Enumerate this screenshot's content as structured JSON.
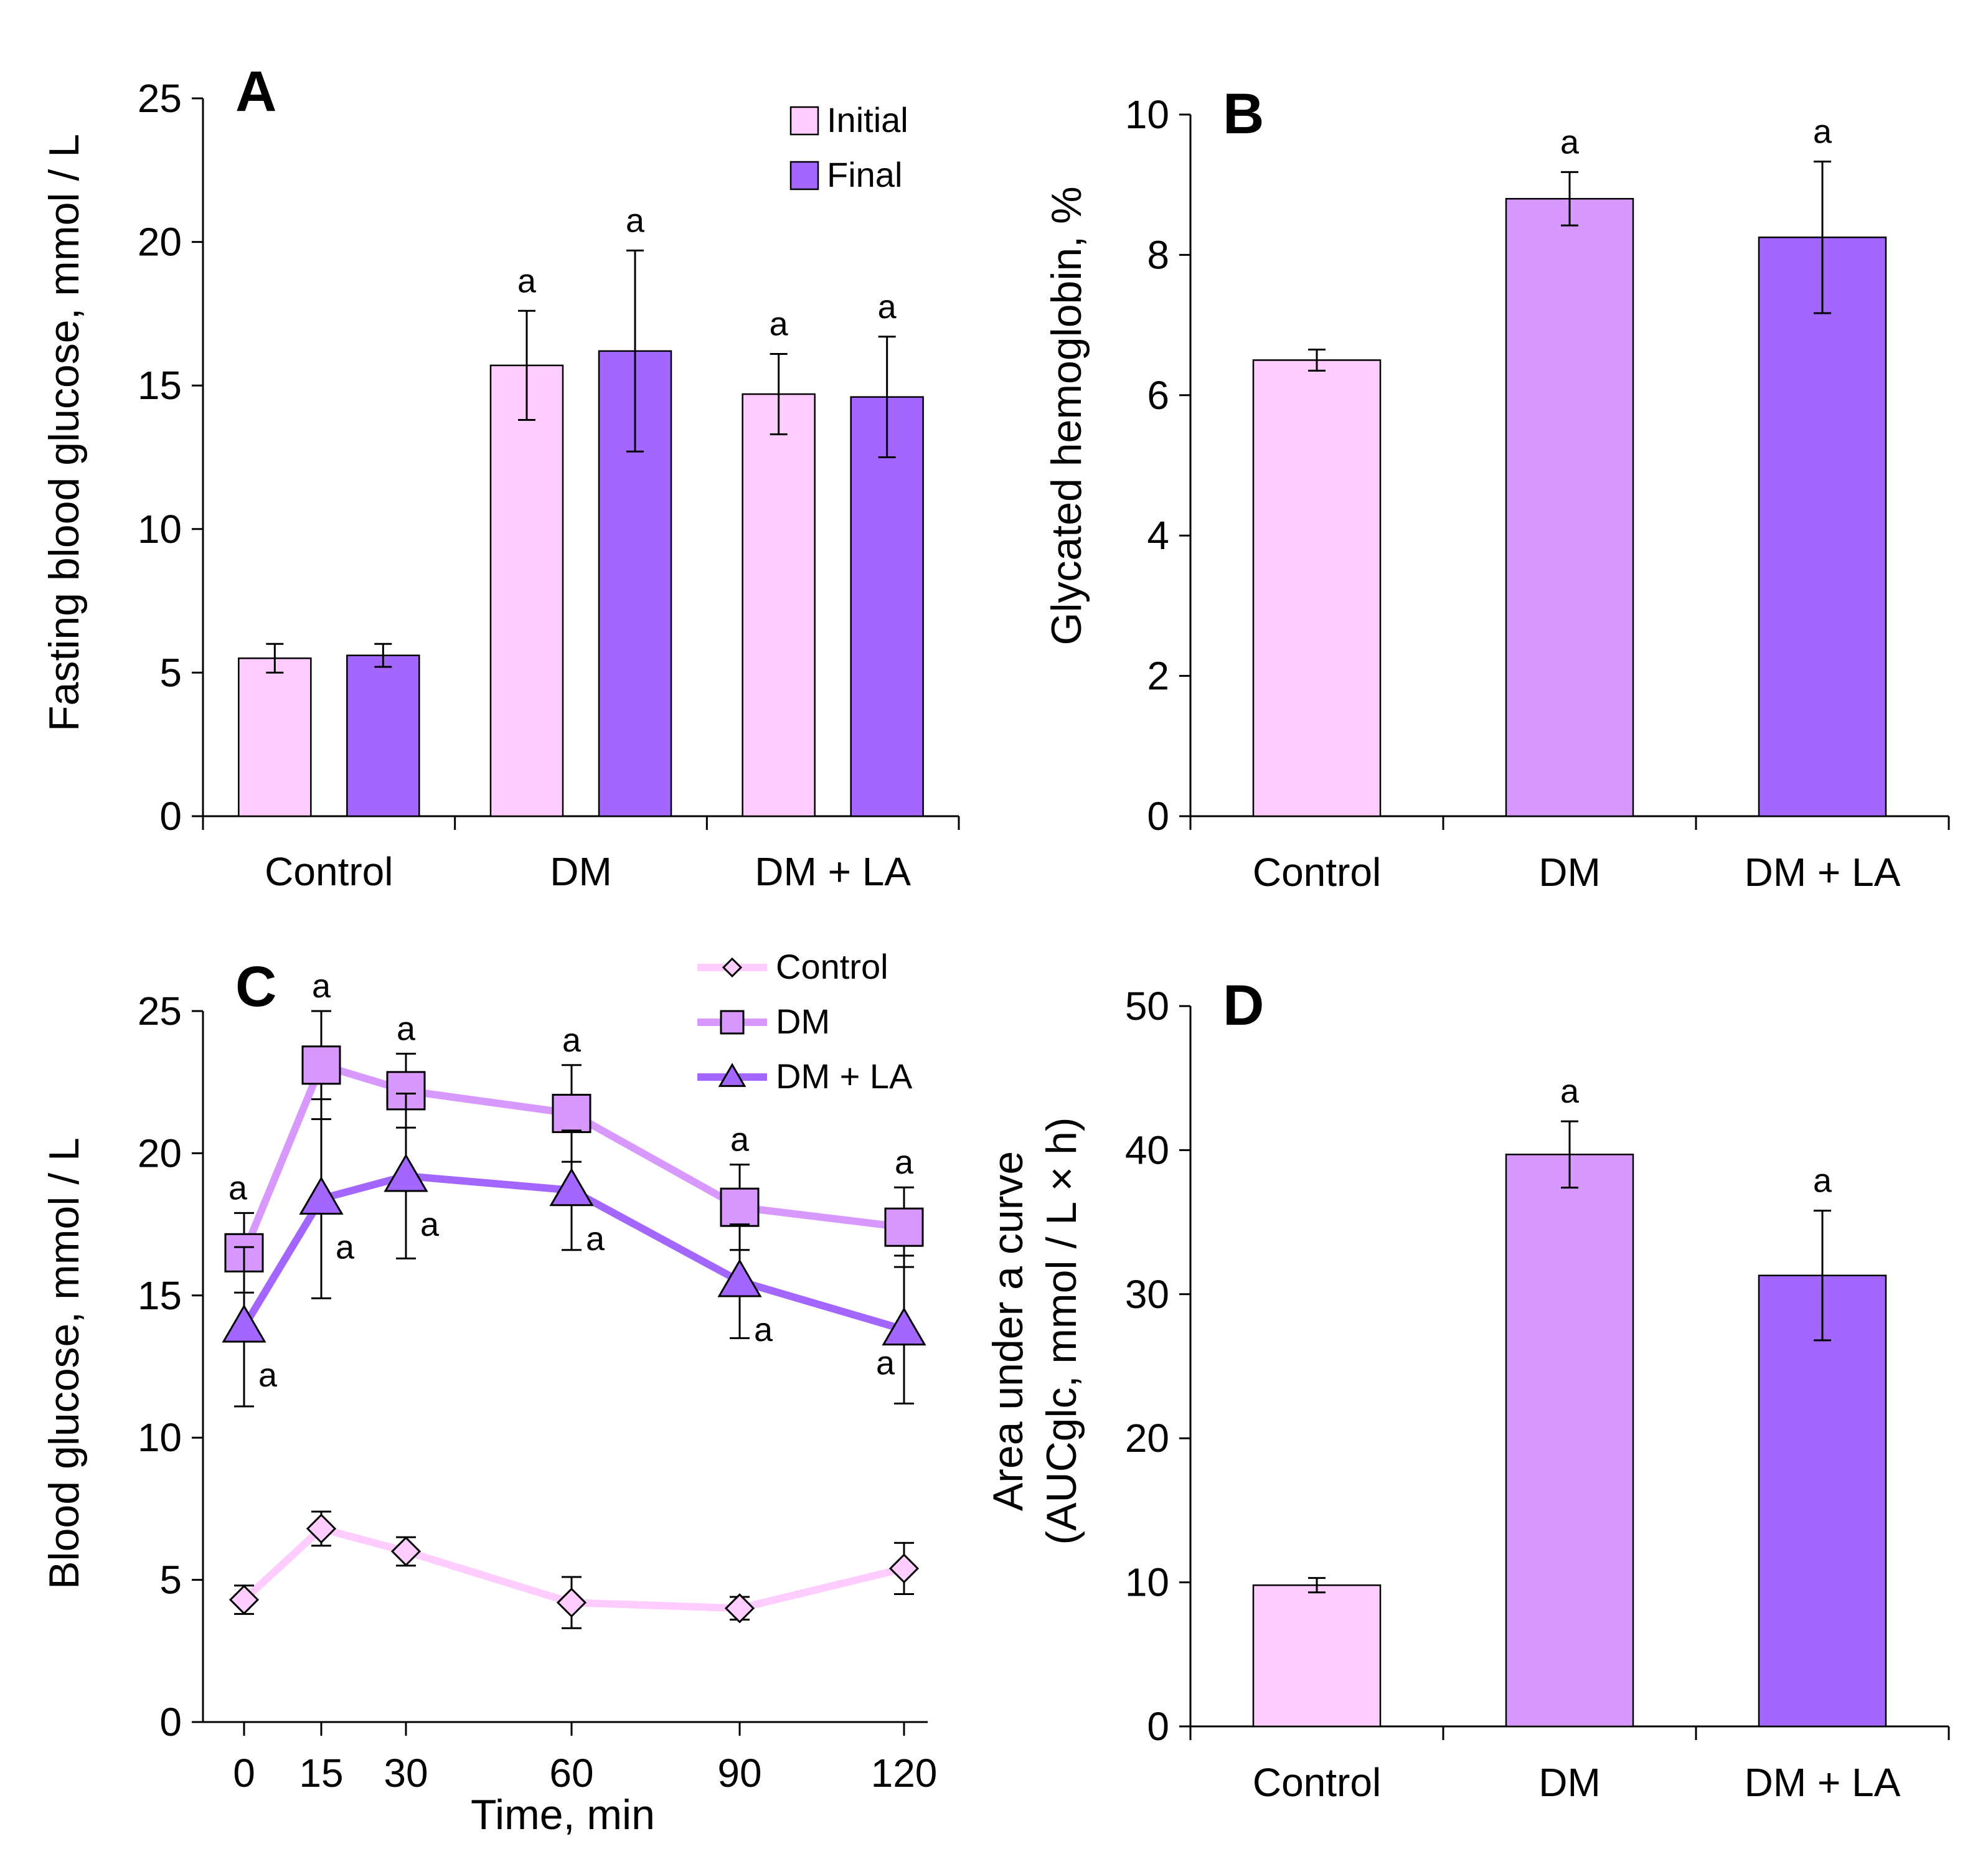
{
  "colors": {
    "light": "#ffccff",
    "mid": "#d899ff",
    "dark": "#a366ff",
    "axis": "#000000"
  },
  "chart_data": [
    {
      "panel": "A",
      "type": "bar",
      "ylabel": "Fasting blood glucose, mmol / L",
      "ylim": [
        0,
        25
      ],
      "yticks": [
        0,
        5,
        10,
        15,
        20,
        25
      ],
      "categories": [
        "Control",
        "DM",
        "DM + LA"
      ],
      "legend_position": "top-right",
      "series": [
        {
          "name": "Initial",
          "color": "#ffccff",
          "values": [
            5.5,
            15.7,
            14.7
          ],
          "errors": [
            0.5,
            1.9,
            1.4
          ],
          "sig": [
            "",
            "a",
            "a"
          ]
        },
        {
          "name": "Final",
          "color": "#a366ff",
          "values": [
            5.6,
            16.2,
            14.6
          ],
          "errors": [
            0.4,
            3.5,
            2.1
          ],
          "sig": [
            "",
            "a",
            "a"
          ]
        }
      ]
    },
    {
      "panel": "B",
      "type": "bar",
      "ylabel": "Glycated hemoglobin, %",
      "ylim": [
        0,
        10
      ],
      "yticks": [
        0,
        2,
        4,
        6,
        8,
        10
      ],
      "categories": [
        "Control",
        "DM",
        "DM + LA"
      ],
      "values": [
        6.5,
        8.8,
        8.25
      ],
      "errors": [
        0.15,
        0.38,
        1.08
      ],
      "colors": [
        "#ffccff",
        "#d899ff",
        "#a366ff"
      ],
      "sig": [
        "",
        "a",
        "a"
      ]
    },
    {
      "panel": "C",
      "type": "line",
      "xlabel": "Time, min",
      "ylabel": "Blood glucose,  mmol / L",
      "x": [
        0,
        15,
        30,
        60,
        90,
        120
      ],
      "ylim": [
        0,
        25
      ],
      "yticks": [
        0,
        5,
        10,
        15,
        20,
        25
      ],
      "legend_position": "top-right",
      "series": [
        {
          "name": "Control",
          "color": "#ffccff",
          "marker": "diamond",
          "values": [
            4.3,
            6.8,
            6.0,
            4.2,
            4.0,
            5.4
          ],
          "errors": [
            0.5,
            0.6,
            0.5,
            0.9,
            0.4,
            0.9
          ],
          "sig": [
            "",
            "",
            "",
            "",
            "",
            ""
          ]
        },
        {
          "name": "DM",
          "color": "#d899ff",
          "marker": "square",
          "values": [
            16.5,
            23.1,
            22.2,
            21.4,
            18.1,
            17.4
          ],
          "errors": [
            1.4,
            1.9,
            1.3,
            1.7,
            1.5,
            1.4
          ],
          "sig": [
            "a",
            "a",
            "a",
            "a",
            "a",
            "a"
          ]
        },
        {
          "name": "DM + LA",
          "color": "#a366ff",
          "marker": "triangle",
          "values": [
            13.9,
            18.4,
            19.2,
            18.7,
            15.5,
            13.8
          ],
          "errors": [
            2.8,
            3.5,
            2.9,
            2.1,
            2.0,
            2.6
          ],
          "sig": [
            "a",
            "a",
            "a",
            "a",
            "a",
            "a"
          ]
        }
      ]
    },
    {
      "panel": "D",
      "type": "bar",
      "ylabel_line1": "Area under a curve",
      "ylabel_line2": "(AUCglc, mmol / L × h)",
      "ylim": [
        0,
        50
      ],
      "yticks": [
        0,
        10,
        20,
        30,
        40,
        50
      ],
      "categories": [
        "Control",
        "DM",
        "DM + LA"
      ],
      "values": [
        9.8,
        39.7,
        31.3
      ],
      "errors": [
        0.5,
        2.3,
        4.5
      ],
      "colors": [
        "#ffccff",
        "#d899ff",
        "#a366ff"
      ],
      "sig": [
        "",
        "a",
        "a"
      ]
    }
  ]
}
